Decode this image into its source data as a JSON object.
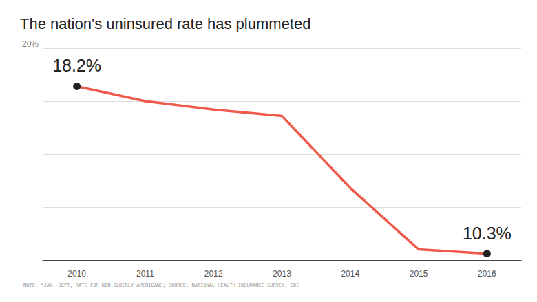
{
  "chart_data": {
    "type": "line",
    "title": "The nation's uninsured rate has plummeted",
    "note": "NOTE: *JAN.-SEPT, RATE FOR NON-ELDERLY AMERICANS; SOURCE: NATIONAL HEALTH INSURANCE SURVEY, CDC",
    "categories": [
      "2010",
      "2011",
      "2012",
      "2013",
      "2014",
      "2015",
      "2016"
    ],
    "values": [
      18.2,
      17.5,
      17.1,
      16.8,
      13.4,
      10.5,
      10.3
    ],
    "color": "#ef5a4c",
    "ylim": [
      10,
      20
    ],
    "yticks": [
      {
        "value": 10,
        "label": null
      },
      {
        "value": 12.5,
        "label": null
      },
      {
        "value": 15,
        "label": null
      },
      {
        "value": 17.5,
        "label": null
      },
      {
        "value": 20,
        "label": "20%"
      }
    ],
    "grid": true,
    "annotations": [
      {
        "x": "2010",
        "value": 18.2,
        "label": "18.2%"
      },
      {
        "x": "2016",
        "value": 10.3,
        "label": "10.3%"
      }
    ]
  }
}
